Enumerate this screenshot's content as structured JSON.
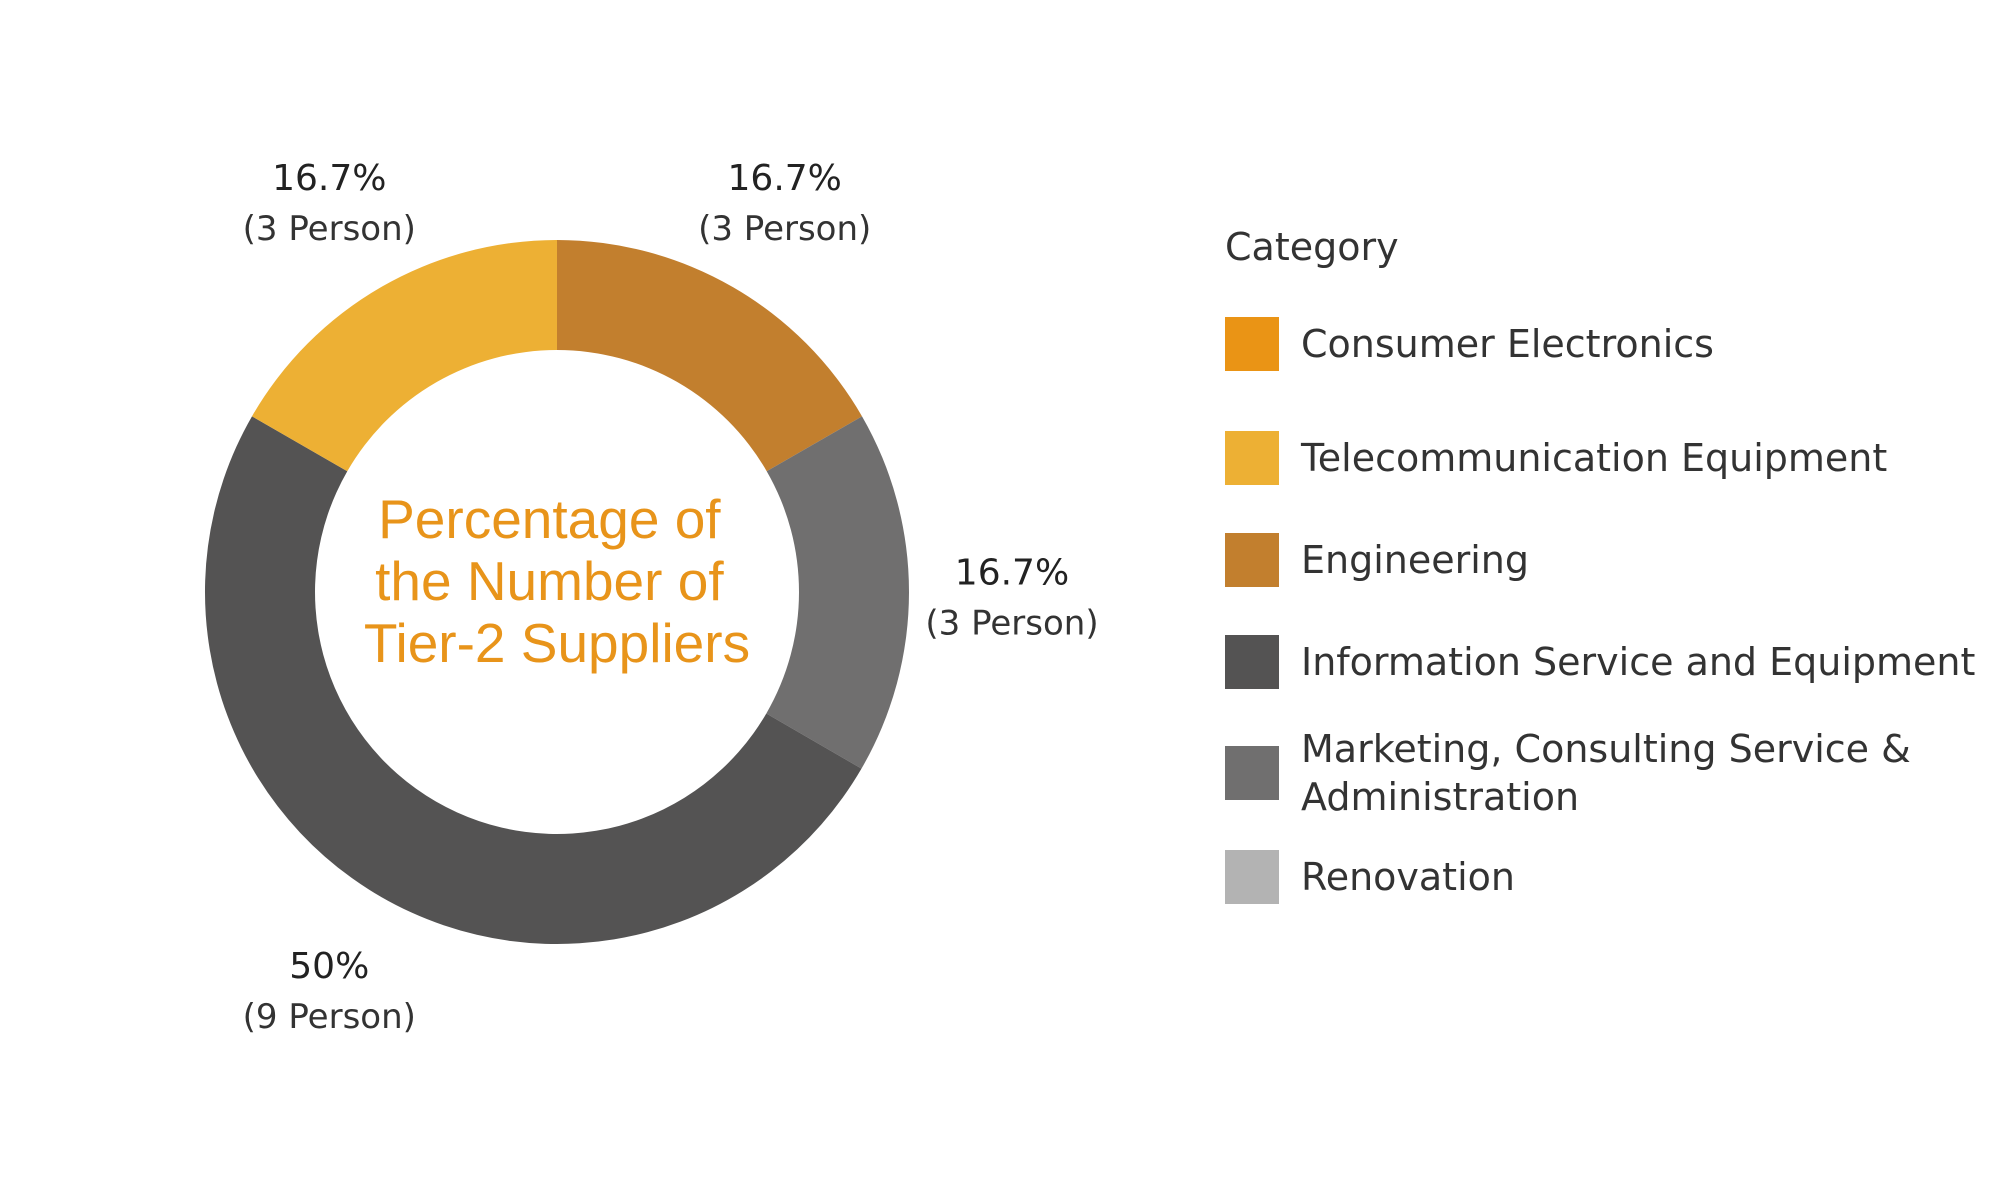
{
  "chart_data": {
    "type": "pie",
    "donut": true,
    "center_title": [
      "Percentage of",
      "the Number of",
      "Tier-2 Suppliers"
    ],
    "center_title_color": "#E8941A",
    "legend_title": "Category",
    "legend_position": "right",
    "categories": [
      "Consumer Electronics",
      "Telecommunication Equipment",
      "Engineering",
      "Information Service and Equipment",
      "Marketing, Consulting Service & Administration",
      "Renovation"
    ],
    "legend": [
      {
        "label": "Consumer Electronics",
        "color": "#EA9415"
      },
      {
        "label": "Telecommunication Equipment",
        "color": "#EDB034"
      },
      {
        "label": "Engineering",
        "color": "#C27F2E"
      },
      {
        "label": "Information Service and Equipment",
        "color": "#545353"
      },
      {
        "label": "Marketing, Consulting Service & Administration",
        "color": "#706F6F"
      },
      {
        "label": "Renovation",
        "color": "#B3B3B3"
      }
    ],
    "slices": [
      {
        "category": "Engineering",
        "value": 16.7,
        "percent_label": "16.7%",
        "count_label": "(3 Person)",
        "color": "#C27F2E"
      },
      {
        "category": "Marketing, Consulting Service & Administration",
        "value": 16.7,
        "percent_label": "16.7%",
        "count_label": "(3 Person)",
        "color": "#706F6F"
      },
      {
        "category": "Information Service and Equipment",
        "value": 50,
        "percent_label": "50%",
        "count_label": "(9 Person)",
        "color": "#545353"
      },
      {
        "category": "Telecommunication Equipment",
        "value": 16.7,
        "percent_label": "16.7%",
        "count_label": "(3 Person)",
        "color": "#EDB034"
      }
    ]
  }
}
